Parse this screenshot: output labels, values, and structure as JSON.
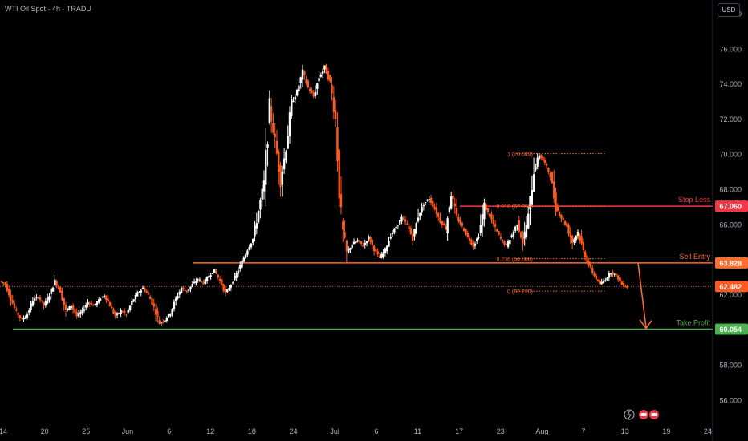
{
  "header": {
    "symbol": "WTI Oil Spot · 4h · TRADU",
    "currency": "USD"
  },
  "icons": [
    "lightning-icon",
    "flag-icon",
    "flag-icon"
  ],
  "colors": {
    "up": "#ffffff",
    "down": "#ff5a1f",
    "stop": "#f23645",
    "entry": "#ff6d2e",
    "target": "#4caf50",
    "fib": "#ff6d2e"
  },
  "chart_data": {
    "type": "candlestick",
    "ylim": [
      54.6,
      78.8
    ],
    "y_ticks": [
      "56.000",
      "58.000",
      "60.000",
      "62.000",
      "64.000",
      "66.000",
      "68.000",
      "70.000",
      "72.000",
      "74.000",
      "76.000",
      "78.000"
    ],
    "x_ticks": [
      "14",
      "20",
      "25",
      "Jun",
      "6",
      "12",
      "18",
      "24",
      "Jul",
      "6",
      "11",
      "17",
      "23",
      "Aug",
      "7",
      "13",
      "19",
      "24"
    ],
    "levels": [
      {
        "label": "Stop Loss",
        "value": "67.060",
        "price": 67.06,
        "color": "#f23645"
      },
      {
        "label": "Sell Entry",
        "value": "63.828",
        "price": 63.828,
        "color": "#ff6d2e"
      },
      {
        "label": "Take Profit",
        "value": "60.054",
        "price": 60.054,
        "color": "#4caf50"
      }
    ],
    "current_price": {
      "value": "62.482",
      "price": 62.482
    },
    "fib_levels": [
      {
        "ratio": "1",
        "label": "1 (70.049)",
        "price": 70.049
      },
      {
        "ratio": "0.618",
        "label": "0.618 (67.055)",
        "price": 67.055
      },
      {
        "ratio": "0.236",
        "label": "0.236 (64.068)",
        "price": 64.068
      },
      {
        "ratio": "0",
        "label": "0 (62.220)",
        "price": 62.22
      }
    ],
    "price_path": [
      62.8,
      62.6,
      61.8,
      61.0,
      60.6,
      60.9,
      61.7,
      61.9,
      61.4,
      62.0,
      62.8,
      62.2,
      61.1,
      61.4,
      60.8,
      61.1,
      61.6,
      61.4,
      61.7,
      62.0,
      61.4,
      60.8,
      61.1,
      60.9,
      61.6,
      62.1,
      62.4,
      62.0,
      61.3,
      60.4,
      60.6,
      61.0,
      61.8,
      62.4,
      62.2,
      62.6,
      62.9,
      62.7,
      63.1,
      63.4,
      62.8,
      62.1,
      62.6,
      63.2,
      63.9,
      64.6,
      65.2,
      66.8,
      68.4,
      72.6,
      70.8,
      68.5,
      70.4,
      72.9,
      73.6,
      74.7,
      73.8,
      73.3,
      74.4,
      75.0,
      74.1,
      72.0,
      66.2,
      64.4,
      64.9,
      65.1,
      64.8,
      65.3,
      64.6,
      64.1,
      64.6,
      65.4,
      65.9,
      66.4,
      66.0,
      65.2,
      66.5,
      67.2,
      67.5,
      66.9,
      66.2,
      65.8,
      67.8,
      66.4,
      65.9,
      65.3,
      64.8,
      65.4,
      67.1,
      66.5,
      65.8,
      65.2,
      64.8,
      65.4,
      66.1,
      65.0,
      66.5,
      69.1,
      70.0,
      69.5,
      68.8,
      67.0,
      66.4,
      65.9,
      65.0,
      65.6,
      64.5,
      63.7,
      63.1,
      62.6,
      62.9,
      63.3,
      63.1,
      62.6,
      62.45
    ]
  }
}
